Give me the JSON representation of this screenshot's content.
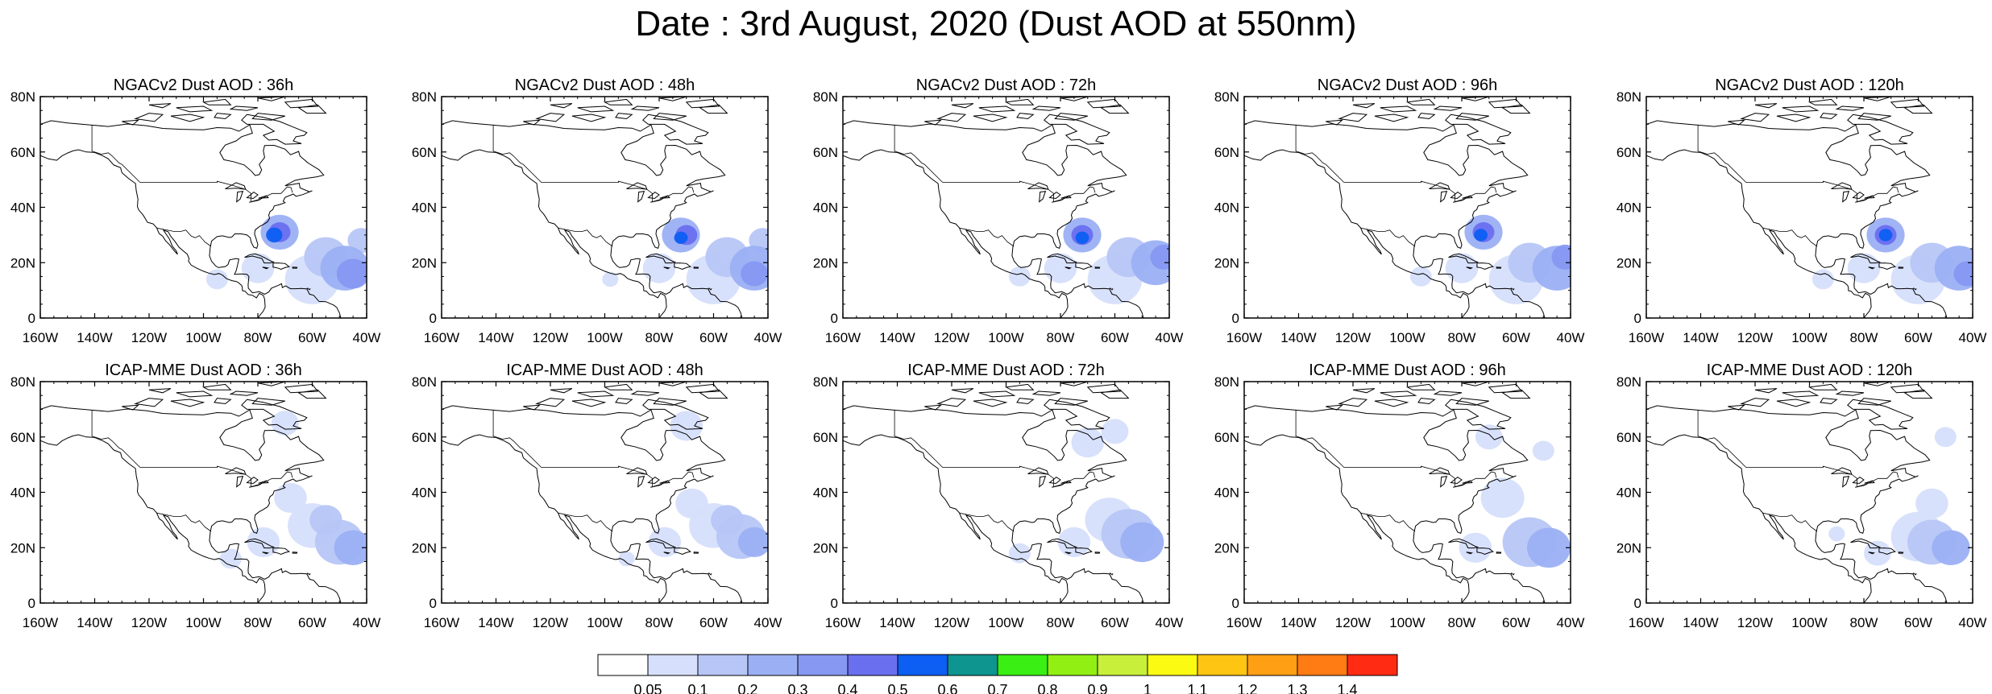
{
  "title": "Date : 3rd August, 2020 (Dust AOD at 550nm)",
  "lon_labels": [
    "160W",
    "140W",
    "120W",
    "100W",
    "80W",
    "60W",
    "40W"
  ],
  "lat_labels": [
    "80N",
    "60N",
    "40N",
    "20N",
    "0"
  ],
  "rows": [
    {
      "model": "NGACv2",
      "panels": [
        {
          "title": "NGACv2 Dust AOD : 36h"
        },
        {
          "title": "NGACv2 Dust AOD : 48h"
        },
        {
          "title": "NGACv2 Dust AOD : 72h"
        },
        {
          "title": "NGACv2 Dust AOD : 96h"
        },
        {
          "title": "NGACv2 Dust AOD : 120h"
        }
      ]
    },
    {
      "model": "ICAP-MME",
      "panels": [
        {
          "title": "ICAP-MME Dust AOD : 36h"
        },
        {
          "title": "ICAP-MME Dust AOD : 48h"
        },
        {
          "title": "ICAP-MME Dust AOD : 72h"
        },
        {
          "title": "ICAP-MME Dust AOD : 96h"
        },
        {
          "title": "ICAP-MME Dust AOD : 120h"
        }
      ]
    }
  ],
  "colorbar": {
    "labels": [
      "0.05",
      "0.1",
      "0.2",
      "0.3",
      "0.4",
      "0.5",
      "0.6",
      "0.7",
      "0.8",
      "0.9",
      "1",
      "1.1",
      "1.2",
      "1.3",
      "1.4"
    ],
    "colors": [
      "#ffffff",
      "#d6dffb",
      "#b7c6f7",
      "#9bb0f4",
      "#8698f2",
      "#6a6ff0",
      "#0d5ef2",
      "#0e9590",
      "#39ef13",
      "#92ef13",
      "#c8ef3a",
      "#fafa13",
      "#ffc513",
      "#ff9f13",
      "#ff7b13",
      "#ff2b13"
    ]
  }
}
